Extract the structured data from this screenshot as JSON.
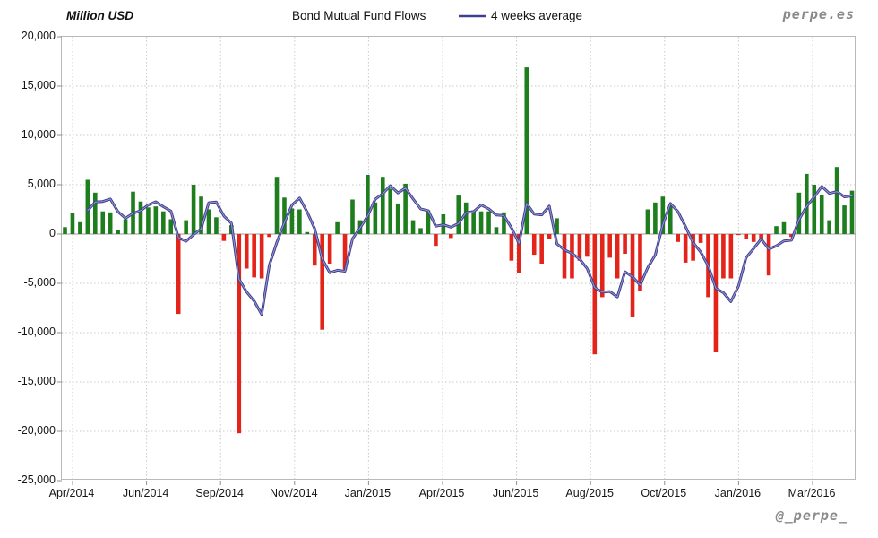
{
  "header": {
    "y_axis_title": "Million USD",
    "title": "Bond Mutual Fund Flows",
    "legend_label": "4 weeks average",
    "brand": "perpe.es"
  },
  "footer": {
    "handle": "@_perpe_"
  },
  "chart_data": {
    "type": "bar",
    "title": "Bond Mutual Fund Flows",
    "unit": "Million USD",
    "frequency": "weekly",
    "span": "Apr 2014 - Mar 2016",
    "ylim": [
      -25000,
      20000
    ],
    "y_ticks": [
      20000,
      15000,
      10000,
      5000,
      0,
      -5000,
      -10000,
      -15000,
      -20000,
      -25000
    ],
    "x_tick_labels": [
      "Apr/2014",
      "Jun/2014",
      "Sep/2014",
      "Nov/2014",
      "Jan/2015",
      "Apr/2015",
      "Jun/2015",
      "Aug/2015",
      "Oct/2015",
      "Jan/2016",
      "Mar/2016"
    ],
    "grid": "horizontal and vertical dotted gridlines, solid zero axis",
    "legend_position": "top",
    "colors": {
      "positive_bar": "#1e7e1e",
      "negative_bar": "#e3241b",
      "line_outer": "#3d3d91",
      "line_inner": "#9a9acc",
      "gridline": "#c9c9c9",
      "zero_line": "#9b9b9b",
      "plot_border": "#b9b9b9",
      "text": "#141414",
      "brand_gray": "#8a8a8a"
    },
    "bar_series": {
      "name": "Weekly bond mutual fund flows (Million USD)",
      "values": [
        700,
        2100,
        1200,
        5500,
        4200,
        2300,
        2200,
        400,
        1500,
        4300,
        3300,
        2700,
        2800,
        2300,
        1500,
        -8100,
        1400,
        5000,
        3800,
        2500,
        1700,
        -700,
        900,
        -20200,
        -3500,
        -4400,
        -4500,
        -300,
        5800,
        3700,
        2600,
        2500,
        200,
        -3200,
        -9700,
        -3000,
        1200,
        -3600,
        3500,
        1400,
        6000,
        3200,
        5800,
        4600,
        3100,
        5100,
        1400,
        600,
        2400,
        -1200,
        2000,
        -400,
        3900,
        3200,
        2400,
        2300,
        2300,
        700,
        2200,
        -2700,
        -4000,
        16900,
        -2100,
        -3000,
        -500,
        1600,
        -4500,
        -4500,
        -2700,
        -2300,
        -12200,
        -6400,
        -2400,
        -4500,
        -2000,
        -8400,
        -5800,
        2500,
        3200,
        3800,
        2900,
        -800,
        -2900,
        -2700,
        -900,
        -6400,
        -12000,
        -4500,
        -4500,
        -100,
        -500,
        -800,
        -600,
        -4200,
        800,
        1200,
        -300,
        4200,
        6100,
        5000,
        4000,
        1400,
        6800,
        2900,
        4400
      ]
    },
    "line_series": {
      "name": "4 weeks average",
      "derivation": "4-week trailing moving average of weekly flow values, starts at week 4"
    }
  }
}
